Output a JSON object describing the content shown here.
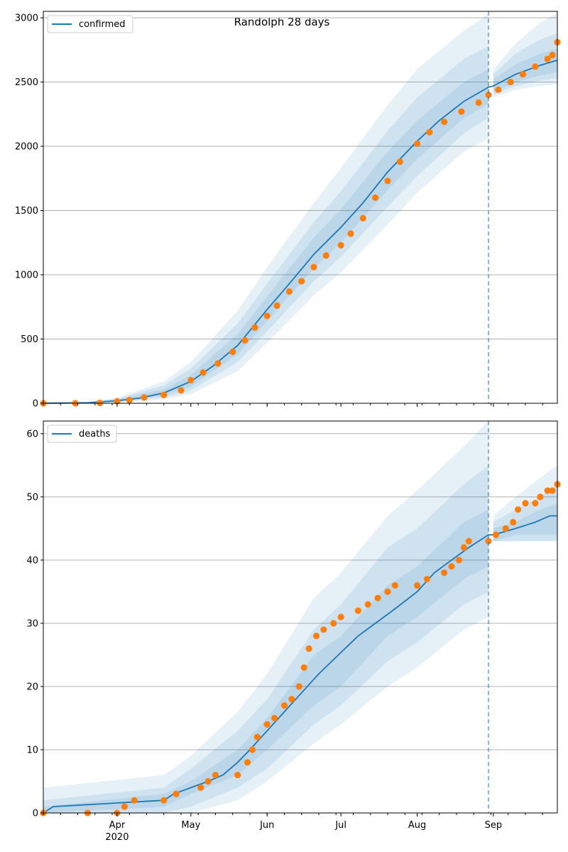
{
  "title": "Randolph 28 days",
  "colors": {
    "line": "#1f77b4",
    "points": "#ff7f0e",
    "band": "#1f77b4",
    "grid": "#b0b0b0",
    "axis": "#000000"
  },
  "x_axis": {
    "start": "2020-03-02",
    "end": "2020-09-27",
    "forecast_start": "2020-08-30",
    "major_ticks": [
      {
        "date": "2020-04-01",
        "label": "Apr",
        "sublabel": "2020"
      },
      {
        "date": "2020-05-01",
        "label": "May",
        "sublabel": ""
      },
      {
        "date": "2020-06-01",
        "label": "Jun",
        "sublabel": ""
      },
      {
        "date": "2020-07-01",
        "label": "Jul",
        "sublabel": ""
      },
      {
        "date": "2020-08-01",
        "label": "Aug",
        "sublabel": ""
      },
      {
        "date": "2020-09-01",
        "label": "Sep",
        "sublabel": ""
      }
    ]
  },
  "chart_data": [
    {
      "type": "line",
      "legend": "confirmed",
      "legend_position": "top-left",
      "grid": "horizontal",
      "ylim": [
        0,
        3050
      ],
      "yticks": [
        0,
        500,
        1000,
        1500,
        2000,
        2500,
        3000
      ],
      "ytick_labels": [
        "0",
        "500",
        "1000",
        "1500",
        "2000",
        "2500",
        "3000"
      ],
      "model_line": [
        [
          "2020-03-02",
          0
        ],
        [
          "2020-03-20",
          4
        ],
        [
          "2020-04-01",
          20
        ],
        [
          "2020-04-10",
          40
        ],
        [
          "2020-04-20",
          80
        ],
        [
          "2020-05-01",
          170
        ],
        [
          "2020-05-10",
          290
        ],
        [
          "2020-05-20",
          450
        ],
        [
          "2020-06-01",
          730
        ],
        [
          "2020-06-10",
          930
        ],
        [
          "2020-06-20",
          1160
        ],
        [
          "2020-07-01",
          1370
        ],
        [
          "2020-07-10",
          1560
        ],
        [
          "2020-07-20",
          1800
        ],
        [
          "2020-08-01",
          2040
        ],
        [
          "2020-08-10",
          2200
        ],
        [
          "2020-08-20",
          2350
        ],
        [
          "2020-08-30",
          2460
        ],
        [
          "2020-09-01",
          2470
        ],
        [
          "2020-09-10",
          2560
        ],
        [
          "2020-09-20",
          2630
        ],
        [
          "2020-09-27",
          2670
        ]
      ],
      "bands": [
        {
          "level": 1,
          "points": [
            [
              "2020-03-02",
              0,
              8
            ],
            [
              "2020-03-20",
              2,
              8
            ],
            [
              "2020-04-01",
              14,
              28
            ],
            [
              "2020-04-20",
              60,
              110
            ],
            [
              "2020-05-01",
              130,
              220
            ],
            [
              "2020-05-20",
              380,
              540
            ],
            [
              "2020-06-01",
              640,
              830
            ],
            [
              "2020-06-20",
              1050,
              1290
            ],
            [
              "2020-07-01",
              1250,
              1510
            ],
            [
              "2020-07-20",
              1660,
              1960
            ],
            [
              "2020-08-01",
              1900,
              2200
            ],
            [
              "2020-08-20",
              2220,
              2500
            ],
            [
              "2020-08-30",
              2330,
              2600
            ],
            [
              "2020-09-01",
              2420,
              2520
            ],
            [
              "2020-09-10",
              2500,
              2640
            ],
            [
              "2020-09-20",
              2550,
              2720
            ],
            [
              "2020-09-27",
              2580,
              2760
            ]
          ]
        },
        {
          "level": 2,
          "points": [
            [
              "2020-03-02",
              0,
              8
            ],
            [
              "2020-03-20",
              1,
              10
            ],
            [
              "2020-04-01",
              10,
              34
            ],
            [
              "2020-04-20",
              45,
              140
            ],
            [
              "2020-05-01",
              100,
              270
            ],
            [
              "2020-05-20",
              320,
              620
            ],
            [
              "2020-06-01",
              560,
              930
            ],
            [
              "2020-06-20",
              950,
              1410
            ],
            [
              "2020-07-01",
              1140,
              1650
            ],
            [
              "2020-07-20",
              1530,
              2120
            ],
            [
              "2020-08-01",
              1770,
              2380
            ],
            [
              "2020-08-20",
              2100,
              2680
            ],
            [
              "2020-08-30",
              2220,
              2780
            ],
            [
              "2020-09-01",
              2400,
              2560
            ],
            [
              "2020-09-10",
              2470,
              2720
            ],
            [
              "2020-09-20",
              2510,
              2830
            ],
            [
              "2020-09-27",
              2530,
              2880
            ]
          ]
        },
        {
          "level": 3,
          "points": [
            [
              "2020-03-02",
              0,
              10
            ],
            [
              "2020-03-20",
              0,
              12
            ],
            [
              "2020-04-01",
              6,
              42
            ],
            [
              "2020-04-20",
              30,
              170
            ],
            [
              "2020-05-01",
              70,
              320
            ],
            [
              "2020-05-20",
              250,
              720
            ],
            [
              "2020-06-01",
              470,
              1060
            ],
            [
              "2020-06-20",
              840,
              1560
            ],
            [
              "2020-07-01",
              1020,
              1830
            ],
            [
              "2020-07-20",
              1390,
              2320
            ],
            [
              "2020-08-01",
              1640,
              2600
            ],
            [
              "2020-08-20",
              1960,
              2900
            ],
            [
              "2020-08-30",
              2060,
              3030
            ],
            [
              "2020-09-01",
              2380,
              2600
            ],
            [
              "2020-09-10",
              2440,
              2800
            ],
            [
              "2020-09-20",
              2470,
              2960
            ],
            [
              "2020-09-27",
              2480,
              3040
            ]
          ]
        }
      ],
      "observed": [
        [
          "2020-03-02",
          0
        ],
        [
          "2020-03-15",
          0
        ],
        [
          "2020-03-25",
          3
        ],
        [
          "2020-04-01",
          15
        ],
        [
          "2020-04-06",
          25
        ],
        [
          "2020-04-12",
          45
        ],
        [
          "2020-04-20",
          65
        ],
        [
          "2020-04-27",
          100
        ],
        [
          "2020-05-01",
          180
        ],
        [
          "2020-05-06",
          240
        ],
        [
          "2020-05-12",
          310
        ],
        [
          "2020-05-18",
          400
        ],
        [
          "2020-05-23",
          490
        ],
        [
          "2020-05-27",
          590
        ],
        [
          "2020-06-01",
          680
        ],
        [
          "2020-06-05",
          760
        ],
        [
          "2020-06-10",
          870
        ],
        [
          "2020-06-15",
          950
        ],
        [
          "2020-06-20",
          1060
        ],
        [
          "2020-06-25",
          1150
        ],
        [
          "2020-07-01",
          1230
        ],
        [
          "2020-07-05",
          1320
        ],
        [
          "2020-07-10",
          1440
        ],
        [
          "2020-07-15",
          1600
        ],
        [
          "2020-07-20",
          1730
        ],
        [
          "2020-07-25",
          1880
        ],
        [
          "2020-08-01",
          2020
        ],
        [
          "2020-08-06",
          2110
        ],
        [
          "2020-08-12",
          2190
        ],
        [
          "2020-08-19",
          2270
        ],
        [
          "2020-08-26",
          2340
        ],
        [
          "2020-08-30",
          2400
        ],
        [
          "2020-09-03",
          2440
        ],
        [
          "2020-09-08",
          2500
        ],
        [
          "2020-09-13",
          2560
        ],
        [
          "2020-09-18",
          2620
        ],
        [
          "2020-09-23",
          2680
        ],
        [
          "2020-09-25",
          2710
        ],
        [
          "2020-09-27",
          2810
        ]
      ]
    },
    {
      "type": "line",
      "legend": "deaths",
      "legend_position": "top-left",
      "grid": "horizontal",
      "ylim": [
        0,
        62
      ],
      "yticks": [
        0,
        10,
        20,
        30,
        40,
        50,
        60
      ],
      "ytick_labels": [
        "0",
        "10",
        "20",
        "30",
        "40",
        "50",
        "60"
      ],
      "model_line": [
        [
          "2020-03-02",
          0
        ],
        [
          "2020-03-06",
          1
        ],
        [
          "2020-04-20",
          2
        ],
        [
          "2020-04-24",
          3
        ],
        [
          "2020-05-01",
          4
        ],
        [
          "2020-05-08",
          5
        ],
        [
          "2020-05-14",
          6
        ],
        [
          "2020-05-20",
          8
        ],
        [
          "2020-05-25",
          10
        ],
        [
          "2020-06-01",
          13
        ],
        [
          "2020-06-08",
          16
        ],
        [
          "2020-06-15",
          19
        ],
        [
          "2020-06-22",
          22
        ],
        [
          "2020-06-30",
          25
        ],
        [
          "2020-07-08",
          28
        ],
        [
          "2020-07-15",
          30
        ],
        [
          "2020-07-22",
          32
        ],
        [
          "2020-08-01",
          35
        ],
        [
          "2020-08-08",
          38
        ],
        [
          "2020-08-15",
          40
        ],
        [
          "2020-08-22",
          42
        ],
        [
          "2020-08-30",
          44
        ],
        [
          "2020-09-01",
          44
        ],
        [
          "2020-09-10",
          45
        ],
        [
          "2020-09-18",
          46
        ],
        [
          "2020-09-24",
          47
        ],
        [
          "2020-09-27",
          47
        ]
      ],
      "bands": [
        {
          "level": 1,
          "points": [
            [
              "2020-03-02",
              0,
              1
            ],
            [
              "2020-04-20",
              1,
              3
            ],
            [
              "2020-05-01",
              3,
              5
            ],
            [
              "2020-05-20",
              6,
              10
            ],
            [
              "2020-06-01",
              10,
              15
            ],
            [
              "2020-06-20",
              17,
              25
            ],
            [
              "2020-07-01",
              20,
              28
            ],
            [
              "2020-07-20",
              28,
              36
            ],
            [
              "2020-08-01",
              31,
              39
            ],
            [
              "2020-08-20",
              37,
              46
            ],
            [
              "2020-08-30",
              39,
              48
            ],
            [
              "2020-09-01",
              43,
              45
            ],
            [
              "2020-09-10",
              44,
              46
            ],
            [
              "2020-09-20",
              44,
              48
            ],
            [
              "2020-09-27",
              44,
              49
            ]
          ]
        },
        {
          "level": 2,
          "points": [
            [
              "2020-03-02",
              0,
              2
            ],
            [
              "2020-04-20",
              0,
              4
            ],
            [
              "2020-05-01",
              1,
              7
            ],
            [
              "2020-05-20",
              4,
              13
            ],
            [
              "2020-06-01",
              7,
              18
            ],
            [
              "2020-06-20",
              14,
              29
            ],
            [
              "2020-07-01",
              17,
              33
            ],
            [
              "2020-07-20",
              24,
              42
            ],
            [
              "2020-08-01",
              27,
              45
            ],
            [
              "2020-08-20",
              33,
              52
            ],
            [
              "2020-08-30",
              35,
              55
            ],
            [
              "2020-09-01",
              43,
              46
            ],
            [
              "2020-09-10",
              43,
              48
            ],
            [
              "2020-09-20",
              43,
              50
            ],
            [
              "2020-09-27",
              43,
              52
            ]
          ]
        },
        {
          "level": 3,
          "points": [
            [
              "2020-03-02",
              0,
              4
            ],
            [
              "2020-04-20",
              0,
              6
            ],
            [
              "2020-05-01",
              0,
              9
            ],
            [
              "2020-05-20",
              2,
              16
            ],
            [
              "2020-06-01",
              5,
              22
            ],
            [
              "2020-06-20",
              11,
              34
            ],
            [
              "2020-07-01",
              14,
              38
            ],
            [
              "2020-07-20",
              20,
              47
            ],
            [
              "2020-08-01",
              23,
              51
            ],
            [
              "2020-08-20",
              29,
              58
            ],
            [
              "2020-08-30",
              31,
              62
            ],
            [
              "2020-09-01",
              43,
              47
            ],
            [
              "2020-09-10",
              43,
              50
            ],
            [
              "2020-09-20",
              43,
              53
            ],
            [
              "2020-09-27",
              43,
              55
            ]
          ]
        }
      ],
      "observed": [
        [
          "2020-03-02",
          0
        ],
        [
          "2020-03-20",
          0
        ],
        [
          "2020-04-01",
          0
        ],
        [
          "2020-04-04",
          1
        ],
        [
          "2020-04-08",
          2
        ],
        [
          "2020-04-20",
          2
        ],
        [
          "2020-04-25",
          3
        ],
        [
          "2020-05-05",
          4
        ],
        [
          "2020-05-08",
          5
        ],
        [
          "2020-05-11",
          6
        ],
        [
          "2020-05-20",
          6
        ],
        [
          "2020-05-24",
          8
        ],
        [
          "2020-05-26",
          10
        ],
        [
          "2020-05-28",
          12
        ],
        [
          "2020-06-01",
          14
        ],
        [
          "2020-06-04",
          15
        ],
        [
          "2020-06-08",
          17
        ],
        [
          "2020-06-11",
          18
        ],
        [
          "2020-06-14",
          20
        ],
        [
          "2020-06-16",
          23
        ],
        [
          "2020-06-18",
          26
        ],
        [
          "2020-06-21",
          28
        ],
        [
          "2020-06-24",
          29
        ],
        [
          "2020-06-28",
          30
        ],
        [
          "2020-07-01",
          31
        ],
        [
          "2020-07-08",
          32
        ],
        [
          "2020-07-12",
          33
        ],
        [
          "2020-07-16",
          34
        ],
        [
          "2020-07-20",
          35
        ],
        [
          "2020-07-23",
          36
        ],
        [
          "2020-08-01",
          36
        ],
        [
          "2020-08-05",
          37
        ],
        [
          "2020-08-12",
          38
        ],
        [
          "2020-08-15",
          39
        ],
        [
          "2020-08-18",
          40
        ],
        [
          "2020-08-20",
          42
        ],
        [
          "2020-08-22",
          43
        ],
        [
          "2020-08-30",
          43
        ],
        [
          "2020-09-02",
          44
        ],
        [
          "2020-09-06",
          45
        ],
        [
          "2020-09-09",
          46
        ],
        [
          "2020-09-11",
          48
        ],
        [
          "2020-09-14",
          49
        ],
        [
          "2020-09-18",
          49
        ],
        [
          "2020-09-20",
          50
        ],
        [
          "2020-09-23",
          51
        ],
        [
          "2020-09-25",
          51
        ],
        [
          "2020-09-27",
          52
        ]
      ]
    }
  ]
}
